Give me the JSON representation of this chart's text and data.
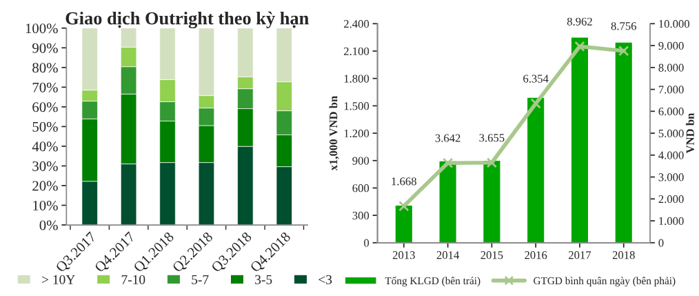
{
  "chart_data": [
    {
      "type": "bar",
      "title": "Giao dịch Outright theo kỳ hạn",
      "stacked": true,
      "categories": [
        "Q3.2017",
        "Q4.2017",
        "Q1.2018",
        "Q2.2018",
        "Q3.2018",
        "Q4.2018"
      ],
      "series": [
        {
          "name": "<3",
          "color": "#004f2f",
          "values": [
            22.2,
            31.0,
            31.7,
            31.7,
            39.9,
            29.6
          ]
        },
        {
          "name": "3-5",
          "color": "#008000",
          "values": [
            31.7,
            35.5,
            21.1,
            18.8,
            19.2,
            16.2
          ]
        },
        {
          "name": "5-7",
          "color": "#339933",
          "values": [
            9.0,
            13.9,
            9.8,
            8.9,
            10.1,
            12.2
          ]
        },
        {
          "name": "7-10",
          "color": "#92d050",
          "values": [
            5.6,
            9.9,
            11.2,
            6.3,
            6.0,
            14.7
          ]
        },
        {
          "name": "> 10Y",
          "color": "#d3e0c0",
          "values": [
            31.5,
            9.7,
            26.2,
            34.3,
            24.8,
            27.3
          ]
        }
      ],
      "ylim": [
        0,
        100
      ],
      "yticks": [
        {
          "value": 0,
          "label": "0%"
        },
        {
          "value": 10,
          "label": "10%"
        },
        {
          "value": 20,
          "label": "20%"
        },
        {
          "value": 30,
          "label": "30%"
        },
        {
          "value": 40,
          "label": "40%"
        },
        {
          "value": 50,
          "label": "50%"
        },
        {
          "value": 60,
          "label": "60%"
        },
        {
          "value": 70,
          "label": "70%"
        },
        {
          "value": 80,
          "label": "80%"
        },
        {
          "value": 90,
          "label": "90%"
        },
        {
          "value": 100,
          "label": "100%"
        }
      ],
      "grid": false,
      "legend": "bottom"
    },
    {
      "type": "bar",
      "categories": [
        "2013",
        "2014",
        "2015",
        "2016",
        "2017",
        "2018"
      ],
      "ylabel": "x1,000 VND bn",
      "y2label": "VND bn",
      "series": [
        {
          "name": "Tổng KLGD (bên trái)",
          "color": "#00a600",
          "values": [
            412,
            898,
            903,
            1594,
            2252,
            2198
          ]
        },
        {
          "name": "GTGD bình quân ngày (bên phải)",
          "type": "line",
          "axis": "y2",
          "color": "#a8c88c",
          "marker": "cross",
          "values": [
            1668,
            3642,
            3655,
            6354,
            8962,
            8756
          ],
          "value_labels": [
            "1.668",
            "3.642",
            "3.655",
            "6.354",
            "8.962",
            "8.756"
          ]
        }
      ],
      "ylim": [
        0,
        2400
      ],
      "yticks": [
        0,
        300,
        600,
        900,
        {
          "value": 1200,
          "label": "1.200"
        },
        {
          "value": 1500,
          "label": "1.500"
        },
        {
          "value": 1800,
          "label": "1.800"
        },
        {
          "value": 2100,
          "label": "2.100"
        },
        {
          "value": 2400,
          "label": "2.400"
        }
      ],
      "y2lim": [
        0,
        10000
      ],
      "y2ticks": [
        0,
        {
          "value": 1000,
          "label": "1.000"
        },
        {
          "value": 2000,
          "label": "2.000"
        },
        {
          "value": 3000,
          "label": "3.000"
        },
        {
          "value": 4000,
          "label": "4.000"
        },
        {
          "value": 5000,
          "label": "5.000"
        },
        {
          "value": 6000,
          "label": "6.000"
        },
        {
          "value": 7000,
          "label": "7.000"
        },
        {
          "value": 8000,
          "label": "8.000"
        },
        {
          "value": 9000,
          "label": "9.000"
        },
        {
          "value": 10000,
          "label": "10.000"
        }
      ],
      "grid": false,
      "legend": "bottom"
    }
  ]
}
